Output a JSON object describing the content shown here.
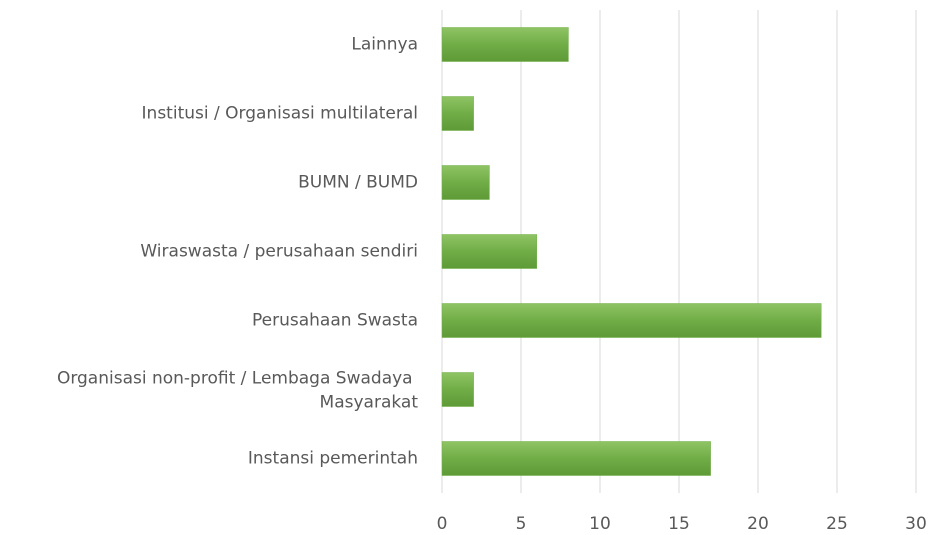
{
  "chart_data": {
    "type": "barh",
    "categories": [
      "Lainnya",
      "Institusi / Organisasi multilateral",
      "BUMN / BUMD",
      "Wiraswasta / perusahaan sendiri",
      "Perusahaan Swasta",
      "Organisasi non-profit / Lembaga Swadaya Masyarakat",
      "Instansi pemerintah"
    ],
    "values": [
      8,
      2,
      3,
      6,
      24,
      2,
      17
    ],
    "color": "#70ad47",
    "xlim": [
      0,
      30
    ],
    "xticks": [
      0,
      5,
      10,
      15,
      20,
      25,
      30
    ],
    "grid": true
  }
}
